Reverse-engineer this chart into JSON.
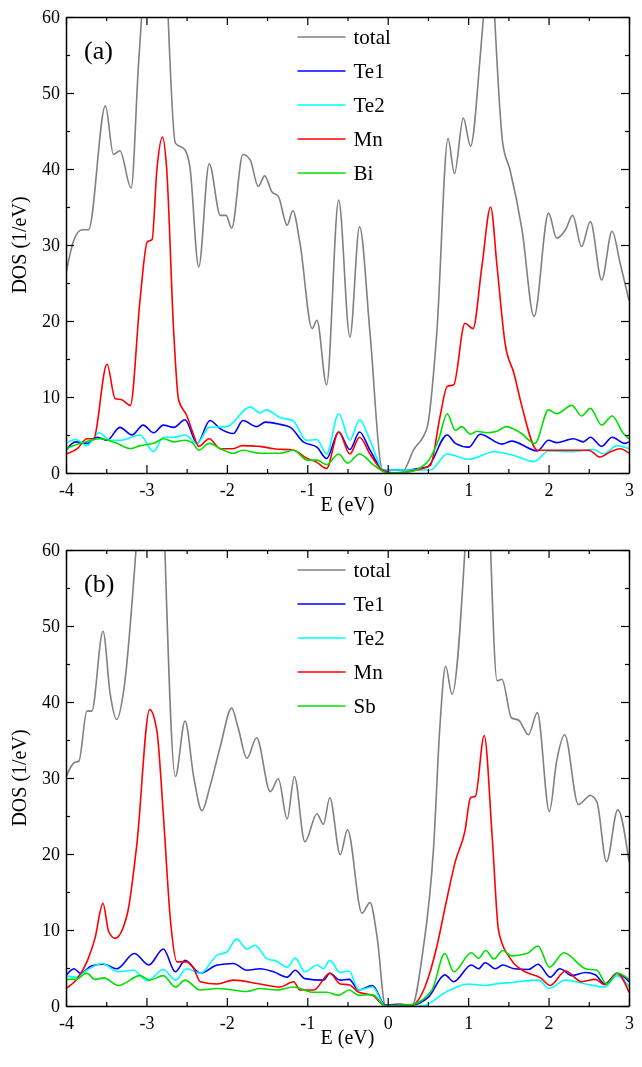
{
  "chart_data": [
    {
      "type": "line",
      "annotations": [
        "(a)"
      ],
      "xlabel": "E (eV)",
      "ylabel": "DOS (1/eV)",
      "xlim": [
        -4,
        3
      ],
      "ylim": [
        0,
        60
      ],
      "xticks": [
        -4,
        {
          "value": -3.5,
          "label": null
        },
        -3,
        {
          "value": -2.5,
          "label": null
        },
        -2,
        {
          "value": -1.5,
          "label": null
        },
        -1,
        {
          "value": -0.5,
          "label": null
        },
        0,
        {
          "value": 0.5,
          "label": null
        },
        1,
        {
          "value": 1.5,
          "label": null
        },
        2,
        {
          "value": 2.5,
          "label": null
        },
        3
      ],
      "yticks": [
        0,
        {
          "value": 5,
          "label": null
        },
        10,
        {
          "value": 15,
          "label": null
        },
        20,
        {
          "value": 25,
          "label": null
        },
        30,
        {
          "value": 35,
          "label": null
        },
        40,
        {
          "value": 45,
          "label": null
        },
        50,
        {
          "value": 55,
          "label": null
        },
        60
      ],
      "legend": "top",
      "grid": false,
      "line_style": "solid",
      "tick_labels": "xy",
      "series": [
        {
          "name": "total",
          "color": "#808080",
          "x": [
            -4,
            -3.9,
            -3.8,
            -3.72,
            -3.51,
            -3.41,
            -3.33,
            -3.19,
            -3.1,
            -3.06,
            -2.9,
            -2.73,
            -2.64,
            -2.52,
            -2.46,
            -2.35,
            -2.22,
            -2.08,
            -2.01,
            -1.94,
            -1.8,
            -1.71,
            -1.61,
            -1.53,
            -1.44,
            -1.36,
            -1.25,
            -1.18,
            -1.09,
            -0.94,
            -0.88,
            -0.76,
            -0.61,
            -0.47,
            -0.35,
            -0.22,
            -0.07,
            0.01,
            0.18,
            0.32,
            0.49,
            0.61,
            0.75,
            0.83,
            0.94,
            1.03,
            1.15,
            1.19,
            1.26,
            1.33,
            1.43,
            1.52,
            1.67,
            1.82,
            2.0,
            2.1,
            2.21,
            2.3,
            2.41,
            2.52,
            2.66,
            2.79,
            2.89,
            3.0
          ],
          "values": [
            26.3,
            30.7,
            32,
            32,
            48.3,
            41.9,
            42.4,
            37.5,
            53.5,
            60,
            null,
            60,
            43.4,
            42.5,
            40.3,
            27.1,
            40.7,
            33.9,
            33.9,
            32.2,
            41.9,
            41.2,
            37.7,
            39.1,
            37,
            36.4,
            32.6,
            34.5,
            30.2,
            19,
            20.1,
            11.6,
            35.9,
            17.9,
            32.4,
            18.4,
            0.4,
            0,
            0.1,
            3,
            6,
            18.4,
            44,
            39.4,
            46.7,
            43,
            54.8,
            60,
            null,
            60,
            43.4,
            39.9,
            32,
            20.6,
            34.2,
            30.9,
            32,
            33.9,
            29.8,
            33.1,
            25.4,
            31.8,
            27.6,
            22.7
          ]
        },
        {
          "name": "Te1",
          "color": "#0000ff",
          "x": [
            -4,
            -3.88,
            -3.74,
            -3.61,
            -3.49,
            -3.33,
            -3.18,
            -3.04,
            -2.91,
            -2.79,
            -2.66,
            -2.52,
            -2.37,
            -2.21,
            -2.08,
            -1.92,
            -1.8,
            -1.63,
            -1.52,
            -1.34,
            -1.21,
            -1.05,
            -0.88,
            -0.76,
            -0.61,
            -0.47,
            -0.35,
            -0.22,
            -0.05,
            0.16,
            0.49,
            0.74,
            0.84,
            1.01,
            1.15,
            1.42,
            1.54,
            1.86,
            2.0,
            2.1,
            2.31,
            2.43,
            2.52,
            2.66,
            2.79,
            2.95,
            3.0
          ],
          "values": [
            3,
            4.1,
            3.9,
            4.7,
            4.3,
            6,
            5,
            6.3,
            5.3,
            6.3,
            6,
            7,
            3.9,
            6.9,
            5.8,
            5.2,
            6.9,
            6.1,
            6.7,
            6.4,
            6,
            4.1,
            3.4,
            1.9,
            5.4,
            3.1,
            5.4,
            3,
            0.4,
            0.4,
            0.8,
            5,
            3.9,
            3.4,
            5.1,
            3.8,
            4.2,
            2.9,
            4.3,
            4,
            4.5,
            4.1,
            4.7,
            3.5,
            4.7,
            3.9,
            4.1
          ]
        },
        {
          "name": "Te2",
          "color": "#00ffff",
          "x": [
            -4,
            -3.88,
            -3.74,
            -3.59,
            -3.45,
            -3.33,
            -3.08,
            -2.91,
            -2.79,
            -2.66,
            -2.52,
            -2.37,
            -2.22,
            -2.0,
            -1.71,
            -1.59,
            -1.51,
            -1.34,
            -1.18,
            -1.01,
            -0.88,
            -0.76,
            -0.61,
            -0.47,
            -0.35,
            -0.22,
            -0.05,
            0.53,
            0.74,
            1.01,
            1.32,
            1.57,
            1.82,
            2.0,
            2.31,
            2.56,
            2.68,
            2.85,
            3.0
          ],
          "values": [
            3.9,
            4.4,
            3.6,
            5.3,
            4.3,
            4.3,
            5,
            2.8,
            4.7,
            4.7,
            5,
            3.9,
            6,
            6.1,
            8.7,
            7.9,
            8.3,
            7.3,
            6.9,
            4.3,
            4.4,
            2.5,
            7.8,
            4.3,
            7,
            4.3,
            0.4,
            0.4,
            2.5,
            1.8,
            2.8,
            2.3,
            1.5,
            2.9,
            2.8,
            3.1,
            2.5,
            3.6,
            3.2
          ]
        },
        {
          "name": "Mn",
          "color": "#ff0000",
          "x": [
            -4,
            -3.86,
            -3.74,
            -3.66,
            -3.49,
            -3.39,
            -3.3,
            -3.2,
            -3.08,
            -2.99,
            -2.93,
            -2.87,
            -2.8,
            -2.75,
            -2.66,
            -2.6,
            -2.5,
            -2.42,
            -2.35,
            -2.22,
            -2.08,
            -1.92,
            -1.81,
            -1.59,
            -1.42,
            -1.17,
            -1.0,
            -0.88,
            -0.76,
            -0.61,
            -0.47,
            -0.35,
            -0.22,
            -0.07,
            0.07,
            0.36,
            0.53,
            0.65,
            0.74,
            0.82,
            0.96,
            1.06,
            1.17,
            1.28,
            1.36,
            1.46,
            1.57,
            1.67,
            1.86,
            2.0,
            2.31,
            2.5,
            2.64,
            2.77,
            2.89,
            3.0
          ],
          "values": [
            2.5,
            3.2,
            4.5,
            4.5,
            14.3,
            9.8,
            9.6,
            8.9,
            22.7,
            30.4,
            30.7,
            39.9,
            44.2,
            40.3,
            18.4,
            9.6,
            7.6,
            5.2,
            3.5,
            4.5,
            3.2,
            3.2,
            3.6,
            3.5,
            3.2,
            3,
            1.9,
            1.4,
            0.6,
            5.4,
            2.5,
            4.7,
            2.5,
            0.4,
            0,
            0.4,
            1,
            7.4,
            11.4,
            11.6,
            19.7,
            19,
            27.1,
            35,
            27.1,
            17,
            13.1,
            8.7,
            3,
            3,
            3,
            3,
            2.1,
            2.8,
            3.2,
            2.6
          ]
        },
        {
          "name": "Bi",
          "color": "#00e000",
          "x": [
            -4,
            -3.82,
            -3.57,
            -3.39,
            -3.2,
            -3.08,
            -2.91,
            -2.79,
            -2.66,
            -2.52,
            -2.42,
            -2.35,
            -2.22,
            -2.08,
            -1.92,
            -1.8,
            -1.59,
            -1.34,
            -1.17,
            -1.0,
            -0.88,
            -0.76,
            -0.61,
            -0.5,
            -0.35,
            -0.17,
            0,
            0.24,
            0.49,
            0.63,
            0.74,
            0.84,
            0.92,
            1.03,
            1.11,
            1.23,
            1.36,
            1.47,
            1.65,
            1.83,
            2.0,
            2.1,
            2.29,
            2.41,
            2.52,
            2.66,
            2.79,
            2.93,
            3.0
          ],
          "values": [
            3.2,
            3.9,
            4.5,
            4,
            3.2,
            3.6,
            3.9,
            4.5,
            4.1,
            4.3,
            3.9,
            3,
            3.9,
            3.2,
            2.6,
            3,
            2.6,
            2.6,
            3,
            1.7,
            1.7,
            1.1,
            2.5,
            1.3,
            2.5,
            1,
            0,
            0.1,
            1.4,
            4.3,
            7.8,
            5.6,
            6.1,
            5.1,
            5.5,
            5.3,
            5.5,
            6.1,
            5.3,
            3.9,
            8.3,
            7.8,
            8.9,
            7.5,
            8.5,
            6.3,
            7.5,
            5.2,
            4.5
          ]
        }
      ]
    },
    {
      "type": "line",
      "annotations": [
        "(b)"
      ],
      "xlabel": "E (eV)",
      "ylabel": "DOS (1/eV)",
      "xlim": [
        -4,
        3
      ],
      "ylim": [
        0,
        60
      ],
      "xticks": [
        -4,
        {
          "value": -3.5,
          "label": null
        },
        -3,
        {
          "value": -2.5,
          "label": null
        },
        -2,
        {
          "value": -1.5,
          "label": null
        },
        -1,
        {
          "value": -0.5,
          "label": null
        },
        0,
        {
          "value": 0.5,
          "label": null
        },
        1,
        {
          "value": 1.5,
          "label": null
        },
        2,
        {
          "value": 2.5,
          "label": null
        },
        3
      ],
      "yticks": [
        0,
        {
          "value": 5,
          "label": null
        },
        10,
        {
          "value": 15,
          "label": null
        },
        20,
        {
          "value": 25,
          "label": null
        },
        30,
        {
          "value": 35,
          "label": null
        },
        40,
        {
          "value": 45,
          "label": null
        },
        50,
        {
          "value": 55,
          "label": null
        },
        60
      ],
      "legend": "top",
      "grid": false,
      "line_style": "solid",
      "tick_labels": "xy",
      "series": [
        {
          "name": "total",
          "color": "#808080",
          "x": [
            -4,
            -3.9,
            -3.84,
            -3.74,
            -3.68,
            -3.54,
            -3.45,
            -3.37,
            -3.28,
            -3.13,
            -2.95,
            -2.77,
            -2.64,
            -2.52,
            -2.41,
            -2.31,
            -2.21,
            -2.08,
            -1.94,
            -1.86,
            -1.75,
            -1.63,
            -1.46,
            -1.36,
            -1.25,
            -1.16,
            -1.03,
            -0.88,
            -0.8,
            -0.72,
            -0.59,
            -0.5,
            -0.32,
            -0.22,
            -0.13,
            -0.03,
            0.14,
            0.3,
            0.43,
            0.57,
            0.65,
            0.72,
            0.8,
            0.96,
            1.12,
            1.28,
            1.36,
            1.42,
            1.54,
            1.63,
            1.75,
            1.86,
            2.01,
            2.1,
            2.2,
            2.37,
            2.52,
            2.6,
            2.72,
            2.86,
            3.0
          ],
          "values": [
            30.1,
            32,
            32.2,
            38.8,
            38.8,
            49.3,
            41,
            37.7,
            41.7,
            60,
            null,
            60,
            30.2,
            37.5,
            30,
            25.7,
            28.9,
            34.2,
            39.2,
            36.6,
            32.6,
            35.3,
            28.2,
            29.9,
            24.6,
            30.2,
            21.6,
            25.3,
            23.9,
            27.4,
            19.9,
            23.2,
            12.2,
            13.6,
            8.9,
            0.1,
            0.3,
            0,
            6.7,
            20.8,
            37,
            44.7,
            41,
            60,
            null,
            60,
            42.8,
            43,
            37.9,
            37.6,
            35.7,
            38.6,
            25.6,
            32.2,
            35.7,
            26.5,
            27.7,
            26.9,
            19,
            25.8,
            19
          ]
        },
        {
          "name": "Te1",
          "color": "#0000ff",
          "x": [
            -4,
            -3.9,
            -3.82,
            -3.68,
            -3.53,
            -3.37,
            -3.15,
            -2.97,
            -2.79,
            -2.64,
            -2.52,
            -2.33,
            -2.12,
            -1.92,
            -1.75,
            -1.59,
            -1.42,
            -1.25,
            -1.15,
            -1.03,
            -0.8,
            -0.72,
            -0.59,
            -0.48,
            -0.36,
            -0.19,
            -0.03,
            0.28,
            0.51,
            0.71,
            0.82,
            1.04,
            1.13,
            1.21,
            1.34,
            1.43,
            1.57,
            1.75,
            1.87,
            2.02,
            2.14,
            2.29,
            2.46,
            2.58,
            2.7,
            2.85,
            3.0
          ],
          "values": [
            4,
            4.9,
            4.3,
            5.3,
            5.5,
            4.9,
            6.9,
            5.4,
            7.5,
            4.5,
            6,
            4.3,
            5.4,
            5.6,
            4.7,
            4.9,
            4.5,
            3.8,
            4.7,
            3.6,
            3.4,
            4.3,
            3.4,
            3.5,
            2.1,
            2.7,
            0.1,
            0.1,
            1.2,
            4.1,
            3.2,
            5.4,
            4.9,
            5.7,
            4.9,
            5.4,
            4.9,
            4.8,
            5.5,
            3.8,
            4.9,
            4,
            4.4,
            4.1,
            2.9,
            4.3,
            3.2
          ]
        },
        {
          "name": "Te2",
          "color": "#00ffff",
          "x": [
            -4,
            -3.88,
            -3.74,
            -3.55,
            -3.35,
            -3.16,
            -2.99,
            -2.79,
            -2.64,
            -2.5,
            -2.33,
            -2.12,
            -2.0,
            -1.88,
            -1.75,
            -1.65,
            -1.5,
            -1.38,
            -1.25,
            -1.15,
            -1.03,
            -0.88,
            -0.8,
            -0.72,
            -0.59,
            -0.48,
            -0.36,
            -0.19,
            -0.03,
            0.43,
            0.72,
            1.0,
            1.21,
            1.34,
            1.54,
            1.88,
            2.0,
            2.21,
            2.46,
            2.7,
            2.85,
            3.0
          ],
          "values": [
            4,
            3.8,
            4.7,
            5.6,
            4.5,
            4.7,
            3.3,
            4.8,
            3.4,
            4.9,
            4.3,
            6.7,
            7.1,
            8.8,
            7.5,
            8,
            6.2,
            5.9,
            5.1,
            6.3,
            4.5,
            5.4,
            4.9,
            6,
            4.4,
            4.6,
            2.1,
            2.5,
            0,
            0,
            1.8,
            2.9,
            2.7,
            2.9,
            3.1,
            3.4,
            2.3,
            3.4,
            2.9,
            2.5,
            4,
            2.5
          ]
        },
        {
          "name": "Mn",
          "color": "#ff0000",
          "x": [
            -4,
            -3.86,
            -3.74,
            -3.64,
            -3.54,
            -3.47,
            -3.39,
            -3.24,
            -3.12,
            -2.96,
            -2.87,
            -2.79,
            -2.7,
            -2.62,
            -2.5,
            -2.41,
            -2.33,
            -2.12,
            -1.92,
            -1.59,
            -1.34,
            -1.17,
            -1.09,
            -0.92,
            -0.72,
            -0.59,
            -0.48,
            -0.36,
            -0.19,
            -0.03,
            0.28,
            0.47,
            0.61,
            0.72,
            0.84,
            0.96,
            1.03,
            1.09,
            1.2,
            1.3,
            1.38,
            1.54,
            1.71,
            1.9,
            2.02,
            2.21,
            2.41,
            2.58,
            2.7,
            2.85,
            3.0
          ],
          "values": [
            2.3,
            3.6,
            5.8,
            8.9,
            13.5,
            9.8,
            8.9,
            12,
            21.2,
            39,
            36.2,
            25.2,
            11.1,
            5.8,
            5.8,
            4.9,
            3.2,
            2.9,
            3.4,
            2.9,
            2.5,
            3.2,
            2.1,
            2.1,
            4.3,
            2.9,
            2.8,
            1.8,
            1.4,
            0,
            0,
            2.7,
            7.8,
            13.3,
            19,
            23,
            27.4,
            27.6,
            35.6,
            22.1,
            9.8,
            6,
            4.5,
            3.7,
            2.7,
            4.6,
            3.2,
            3.5,
            2.8,
            4.3,
            1.8
          ]
        },
        {
          "name": "Sb",
          "color": "#00e000",
          "x": [
            -4,
            -3.88,
            -3.74,
            -3.64,
            -3.53,
            -3.35,
            -3.08,
            -2.96,
            -2.79,
            -2.64,
            -2.52,
            -2.33,
            -2.12,
            -1.92,
            -1.75,
            -1.59,
            -1.38,
            -1.17,
            -0.92,
            -0.76,
            -0.61,
            -0.48,
            -0.36,
            -0.19,
            -0.03,
            0.3,
            0.55,
            0.71,
            0.82,
            1.04,
            1.13,
            1.22,
            1.32,
            1.43,
            1.54,
            1.73,
            1.87,
            2.01,
            2.19,
            2.46,
            2.6,
            2.72,
            2.86,
            3.0
          ],
          "values": [
            3.5,
            3.5,
            4.3,
            3.5,
            3.7,
            2.7,
            4,
            3.4,
            4,
            2.5,
            3.4,
            2.1,
            2.3,
            2.1,
            1.9,
            2.3,
            2.1,
            2.5,
            1.8,
            1.8,
            1.4,
            2.1,
            1.4,
            1.5,
            0,
            0.2,
            2.1,
            6.9,
            4.5,
            7,
            6.3,
            7.3,
            6.2,
            7.3,
            6.6,
            6.9,
            7.9,
            5.1,
            7,
            4.9,
            4.7,
            2.9,
            4.3,
            3.5
          ]
        }
      ]
    }
  ]
}
